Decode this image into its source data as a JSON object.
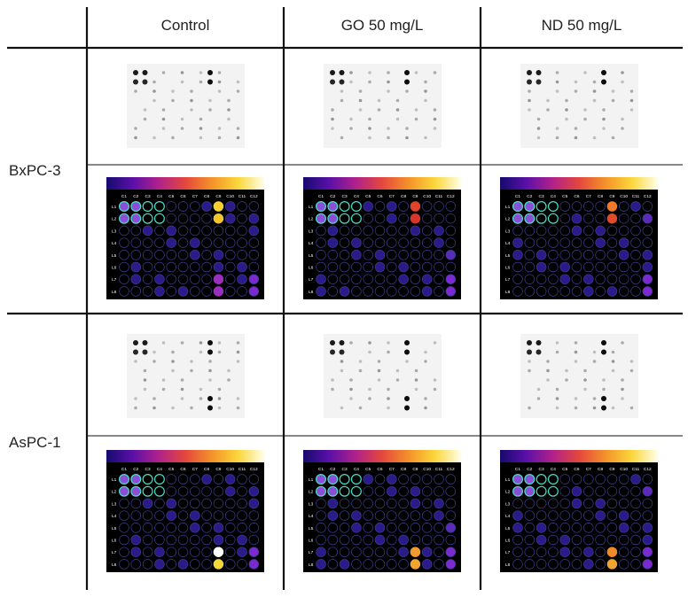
{
  "columns": [
    "Control",
    "GO 50 mg/L",
    "ND 50 mg/L"
  ],
  "rows": [
    "BxPC-3",
    "AsPC-1"
  ],
  "array_grid": {
    "col_labels": [
      "C1",
      "C2",
      "C3",
      "C4",
      "C5",
      "C6",
      "C7",
      "C8",
      "C9",
      "C10",
      "C11",
      "C12"
    ],
    "row_labels": [
      "L1",
      "L2",
      "L3",
      "L4",
      "L5",
      "L6",
      "L7",
      "L8"
    ]
  },
  "colorbar_stops": [
    "#150a6e",
    "#5b10a8",
    "#b0218a",
    "#e4473d",
    "#f3922a",
    "#fbd63a",
    "#ffffe8"
  ],
  "panels": [
    {
      "id": "bxpc3-control",
      "row": 0,
      "col": 0,
      "hot": [
        [
          0,
          8,
          "#f6d030"
        ],
        [
          1,
          8,
          "#f4c52a"
        ],
        [
          6,
          8,
          "#9a2fbf"
        ],
        [
          7,
          8,
          "#9a2fbf"
        ]
      ]
    },
    {
      "id": "bxpc3-go",
      "row": 0,
      "col": 1,
      "hot": [
        [
          0,
          8,
          "#e0432a"
        ],
        [
          1,
          8,
          "#d8362a"
        ]
      ]
    },
    {
      "id": "bxpc3-nd",
      "row": 0,
      "col": 2,
      "hot": [
        [
          0,
          8,
          "#f07a28"
        ],
        [
          1,
          8,
          "#e24a2a"
        ]
      ]
    },
    {
      "id": "aspc1-control",
      "row": 1,
      "col": 0,
      "hot": [
        [
          6,
          8,
          "#ffffff"
        ],
        [
          7,
          8,
          "#f3d83a"
        ]
      ]
    },
    {
      "id": "aspc1-go",
      "row": 1,
      "col": 1,
      "hot": [
        [
          6,
          8,
          "#f19a30"
        ],
        [
          7,
          8,
          "#f0a530"
        ]
      ]
    },
    {
      "id": "aspc1-nd",
      "row": 1,
      "col": 2,
      "hot": [
        [
          6,
          8,
          "#f08a2a"
        ],
        [
          7,
          8,
          "#f0a530"
        ]
      ]
    }
  ]
}
